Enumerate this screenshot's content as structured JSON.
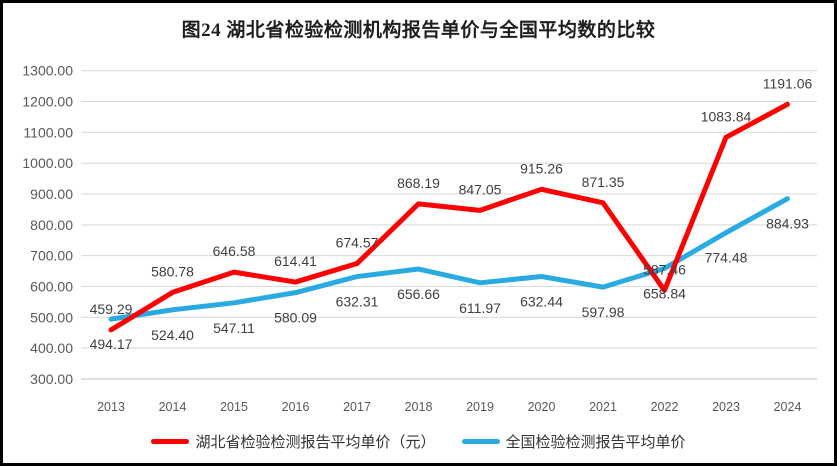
{
  "chart_data": {
    "type": "line",
    "title": "图24 湖北省检验检测机构报告单价与全国平均数的比较",
    "categories": [
      "2013",
      "2014",
      "2015",
      "2016",
      "2017",
      "2018",
      "2019",
      "2020",
      "2021",
      "2022",
      "2023",
      "2024"
    ],
    "series": [
      {
        "name": "湖北省检验检测报告平均单价（元）",
        "color": "#FF0000",
        "label_position": "above",
        "values": [
          459.29,
          580.78,
          646.58,
          614.41,
          674.57,
          868.19,
          847.05,
          915.26,
          871.35,
          587.46,
          1083.84,
          1191.06
        ]
      },
      {
        "name": "全国检验检测报告平均单价",
        "color": "#29ABE2",
        "label_position": "below",
        "values": [
          494.17,
          524.4,
          547.11,
          580.09,
          632.31,
          656.66,
          611.97,
          632.44,
          597.98,
          658.84,
          774.48,
          884.93
        ]
      }
    ],
    "y_axis": {
      "min": 300,
      "max": 1300,
      "step": 100,
      "tick_labels": [
        "300.00",
        "400.00",
        "500.00",
        "600.00",
        "700.00",
        "800.00",
        "900.00",
        "1000.00",
        "1100.00",
        "1200.00",
        "1300.00"
      ]
    },
    "grid": true,
    "legend_position": "bottom",
    "colors": {
      "grid_line": "#D9D9D9",
      "axis_line": "#BFBFBF",
      "axis_text": "#595959",
      "data_label_text": "#404040"
    }
  }
}
